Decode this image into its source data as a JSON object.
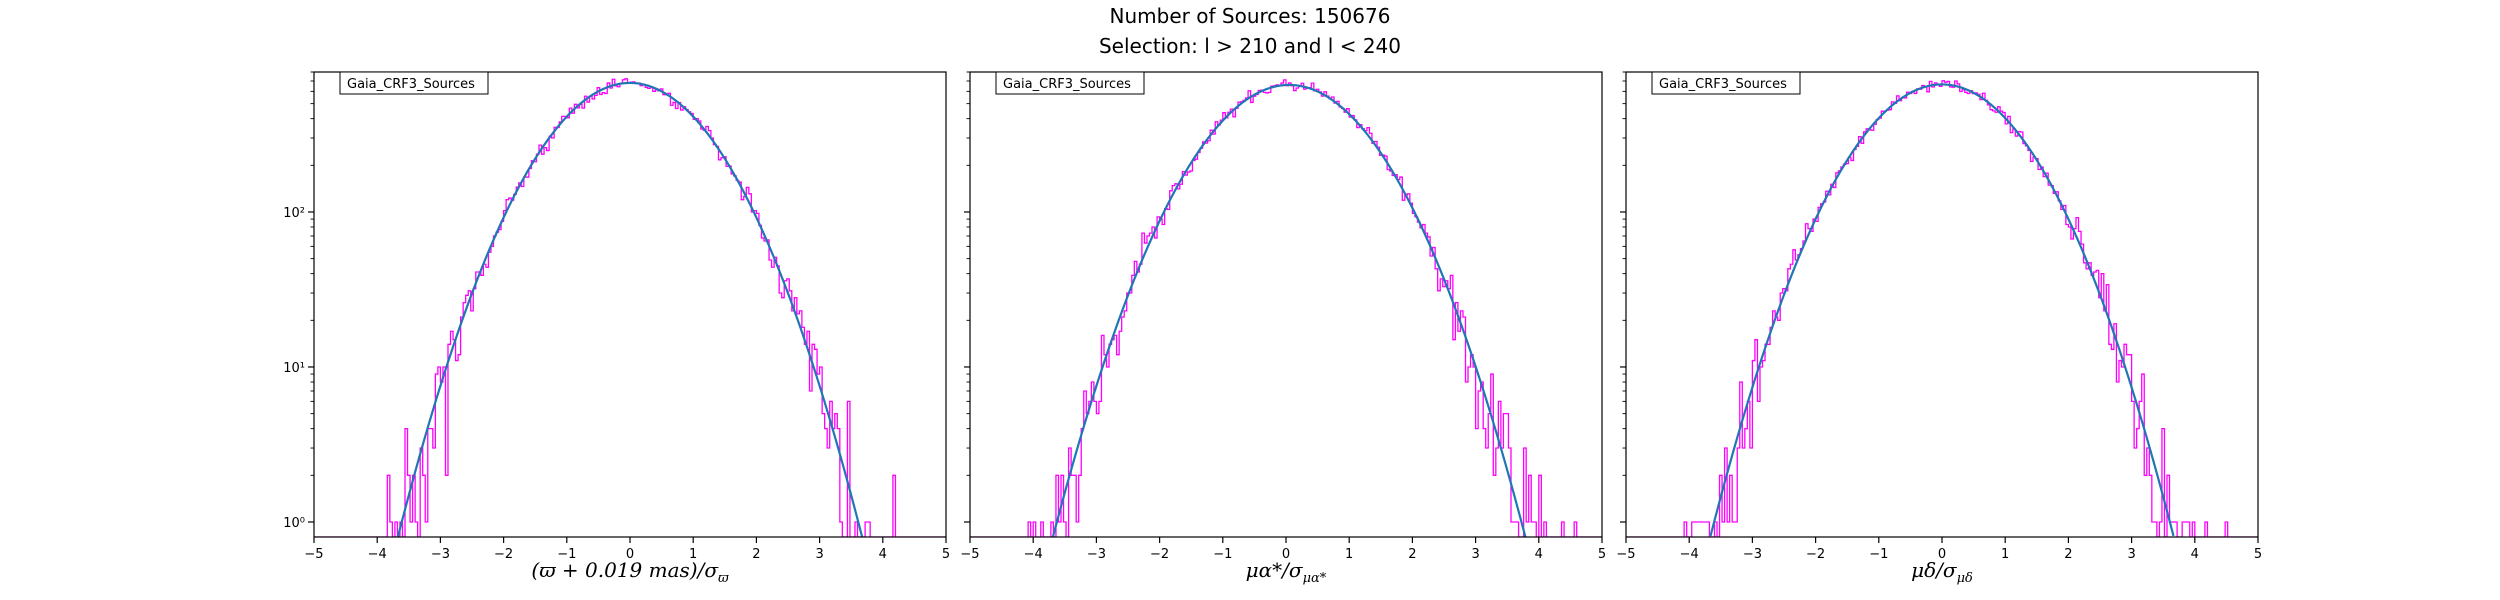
{
  "figure": {
    "suptitle_line1": "Number of Sources: 150676",
    "suptitle_line2": "Selection: l > 210 and l < 240"
  },
  "colors": {
    "histogram": "#ff00ff",
    "fit": "#1f77b4",
    "axes": "#000000"
  },
  "chart_data": [
    {
      "type": "line",
      "legend_label": "Gaia_CRF3_Sources",
      "legend_position": "top-left",
      "xlabel_parts": {
        "main": "(ϖ + 0.019 mas)/σ",
        "sub": "ϖ"
      },
      "xlim": [
        -5,
        5
      ],
      "ylim": [
        0.8,
        800
      ],
      "yscale": "log",
      "xticks": [
        -5,
        -4,
        -3,
        -2,
        -1,
        0,
        1,
        2,
        3,
        4,
        5
      ],
      "yticks": [
        {
          "value": 1,
          "label": "10⁰"
        },
        {
          "value": 10,
          "label": "10¹"
        },
        {
          "value": 100,
          "label": "10²"
        }
      ],
      "series": [
        {
          "kind": "histogram",
          "bin_width": 0.04,
          "fit_peak": 680,
          "fit_mean": 0.0,
          "fit_sigma": 1.0,
          "noise_seed": 11
        },
        {
          "kind": "gaussian_fit",
          "peak": 680,
          "mean": 0.0,
          "sigma": 1.0
        }
      ]
    },
    {
      "type": "line",
      "legend_label": "Gaia_CRF3_Sources",
      "legend_position": "top-left",
      "xlabel_parts": {
        "main": "μα*/σ",
        "sub": "μα*"
      },
      "xlim": [
        -5,
        5
      ],
      "ylim": [
        0.8,
        800
      ],
      "yscale": "log",
      "xticks": [
        -5,
        -4,
        -3,
        -2,
        -1,
        0,
        1,
        2,
        3,
        4,
        5
      ],
      "yticks": [
        {
          "value": 1,
          "label": ""
        },
        {
          "value": 10,
          "label": ""
        },
        {
          "value": 100,
          "label": ""
        }
      ],
      "series": [
        {
          "kind": "histogram",
          "bin_width": 0.04,
          "fit_peak": 660,
          "fit_mean": 0.05,
          "fit_sigma": 1.02,
          "noise_seed": 23
        },
        {
          "kind": "gaussian_fit",
          "peak": 660,
          "mean": 0.05,
          "sigma": 1.02
        }
      ]
    },
    {
      "type": "line",
      "legend_label": "Gaia_CRF3_Sources",
      "legend_position": "top-left",
      "xlabel_parts": {
        "main": "μδ/σ",
        "sub": "μδ"
      },
      "xlim": [
        -5,
        5
      ],
      "ylim": [
        0.8,
        800
      ],
      "yscale": "log",
      "xticks": [
        -5,
        -4,
        -3,
        -2,
        -1,
        0,
        1,
        2,
        3,
        4,
        5
      ],
      "yticks": [
        {
          "value": 1,
          "label": ""
        },
        {
          "value": 10,
          "label": ""
        },
        {
          "value": 100,
          "label": ""
        }
      ],
      "series": [
        {
          "kind": "histogram",
          "bin_width": 0.04,
          "fit_peak": 665,
          "fit_mean": 0.0,
          "fit_sigma": 1.0,
          "noise_seed": 37
        },
        {
          "kind": "gaussian_fit",
          "peak": 665,
          "mean": 0.0,
          "sigma": 1.0
        }
      ]
    }
  ]
}
